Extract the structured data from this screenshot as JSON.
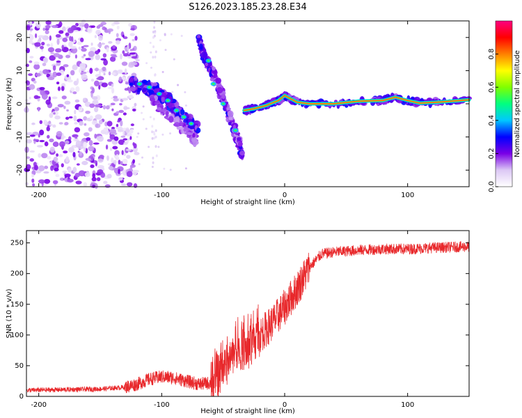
{
  "title": "S126.2023.185.23.28.E34",
  "chart_data": [
    {
      "type": "heatmap",
      "xlabel": "Height of straight line (km)",
      "ylabel": "Frequency (Hz)",
      "xlim": [
        -210,
        150
      ],
      "ylim": [
        -25,
        25
      ],
      "x_ticks": [
        -200,
        -100,
        0,
        100
      ],
      "y_ticks": [
        -20,
        -10,
        0,
        10,
        20
      ],
      "colorbar": {
        "label": "Normalized spectral amplitude",
        "range": [
          0.0,
          1.0
        ],
        "ticks": [
          0.0,
          0.2,
          0.4,
          0.6,
          0.8
        ],
        "stops": [
          "#ffffff",
          "#dcc8f5",
          "#7a00e6",
          "#0000ff",
          "#00c8ff",
          "#00ff80",
          "#80ff00",
          "#ffff00",
          "#ff8000",
          "#ff0000",
          "#ff0080"
        ]
      },
      "features": [
        {
          "x_range": [
            -210,
            -130
          ],
          "description_points": [
            [
              -200,
              20
            ],
            [
              -180,
              5
            ],
            [
              -160,
              -15
            ],
            [
              -140,
              10
            ]
          ]
        },
        {
          "band": [
            [
              -125,
              6
            ],
            [
              -105,
              4
            ],
            [
              -90,
              0
            ],
            [
              -80,
              -5
            ],
            [
              -68,
              -8
            ]
          ]
        },
        {
          "band": [
            [
              -68,
              16
            ],
            [
              -60,
              8
            ],
            [
              -50,
              2
            ],
            [
              -42,
              -5
            ],
            [
              -35,
              -15
            ]
          ]
        },
        {
          "band": [
            [
              -30,
              -2
            ],
            [
              -20,
              -1
            ],
            [
              0,
              2
            ],
            [
              20,
              0
            ],
            [
              60,
              1
            ],
            [
              90,
              2
            ],
            [
              120,
              0.5
            ],
            [
              150,
              1
            ]
          ]
        }
      ]
    },
    {
      "type": "line",
      "xlabel": "Height of straight line (km)",
      "ylabel": "SNR (10 * v/v)",
      "xlim": [
        -210,
        150
      ],
      "ylim": [
        0,
        270
      ],
      "x_ticks": [
        -200,
        -100,
        0,
        100
      ],
      "y_ticks": [
        0,
        50,
        100,
        150,
        200,
        250
      ],
      "color": "#e8282b",
      "series": [
        {
          "x": [
            -210,
            -180,
            -150,
            -130,
            -120,
            -110,
            -100,
            -90,
            -80,
            -70,
            -60,
            -50,
            -40,
            -30,
            -20,
            -10,
            0,
            10,
            20,
            30,
            40,
            60,
            80,
            100,
            120,
            150
          ],
          "values": [
            10,
            11,
            12,
            15,
            20,
            28,
            32,
            30,
            25,
            20,
            22,
            40,
            80,
            75,
            100,
            120,
            145,
            175,
            210,
            232,
            235,
            238,
            240,
            240,
            242,
            244
          ]
        }
      ]
    }
  ]
}
